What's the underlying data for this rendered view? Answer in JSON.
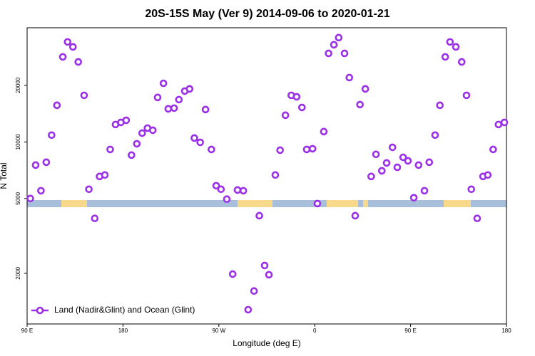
{
  "chart_data": {
    "type": "scatter",
    "title": "20S-15S May (Ver 9)   2014-09-06 to 2020-01-21",
    "x_label": "Longitude (deg E)",
    "y_label": "N Total",
    "y_scale": "log",
    "legend_position": "bottom left",
    "xlim": [
      90,
      540
    ],
    "xticks": [
      {
        "value": 90,
        "label": "90 E"
      },
      {
        "value": 180,
        "label": "180"
      },
      {
        "value": 270,
        "label": "90 W"
      },
      {
        "value": 360,
        "label": "0"
      },
      {
        "value": 450,
        "label": "90 E"
      },
      {
        "value": 540,
        "label": "180"
      }
    ],
    "ylim": [
      1075,
      40500
    ],
    "yticks": [
      2000,
      5000,
      10000,
      20000
    ],
    "series": [
      {
        "name": "Land (Nadir&Glint) and Ocean (Glint)",
        "color": "#9b30e8",
        "x": [
          93,
          98,
          103,
          108,
          113,
          118,
          123.5,
          128,
          133,
          138,
          143.5,
          148,
          153.5,
          158,
          163,
          168,
          173,
          178,
          183,
          188,
          193,
          198,
          203,
          208,
          212.5,
          218,
          222.5,
          228,
          232.5,
          238,
          242.5,
          247,
          252.5,
          257.5,
          263,
          267.5,
          272,
          277.5,
          283,
          287.5,
          293,
          297.5,
          303,
          308,
          313,
          317,
          323,
          327.5,
          332.5,
          338,
          343,
          348,
          352.5,
          358,
          362.5,
          368.5,
          373,
          378,
          382.5,
          388,
          392.5,
          398,
          402.5,
          407.5,
          413,
          417.5,
          423,
          427.5,
          433,
          437.5,
          443,
          447.5,
          453,
          457.5,
          463,
          467.5,
          473,
          477.5,
          482.5,
          487,
          492.5,
          498,
          502.5,
          507,
          512.5,
          518,
          522.5,
          527.5,
          532.5,
          538
        ],
        "values": [
          5000,
          7530,
          5500,
          7800,
          10870,
          15670,
          28350,
          34050,
          32050,
          26650,
          17700,
          5600,
          3920,
          6550,
          6670,
          9120,
          12380,
          12700,
          13040,
          8510,
          9780,
          11140,
          11850,
          11540,
          17250,
          20510,
          15000,
          15130,
          16800,
          18650,
          19150,
          10490,
          9950,
          14870,
          9120,
          5850,
          5600,
          4960,
          1980,
          5550,
          5500,
          1280,
          1610,
          4050,
          2200,
          1965,
          6670,
          9040,
          13870,
          17700,
          17380,
          15260,
          9120,
          9200,
          4700,
          11350,
          29600,
          32900,
          35900,
          29600,
          22000,
          4050,
          15800,
          19150,
          6550,
          8590,
          7020,
          7730,
          9360,
          7330,
          8280,
          7930,
          5050,
          7530,
          5500,
          7800,
          10870,
          15670,
          28350,
          34050,
          32050,
          26650,
          17700,
          5600,
          3920,
          6550,
          6670,
          9120,
          12380,
          12700
        ]
      }
    ]
  }
}
